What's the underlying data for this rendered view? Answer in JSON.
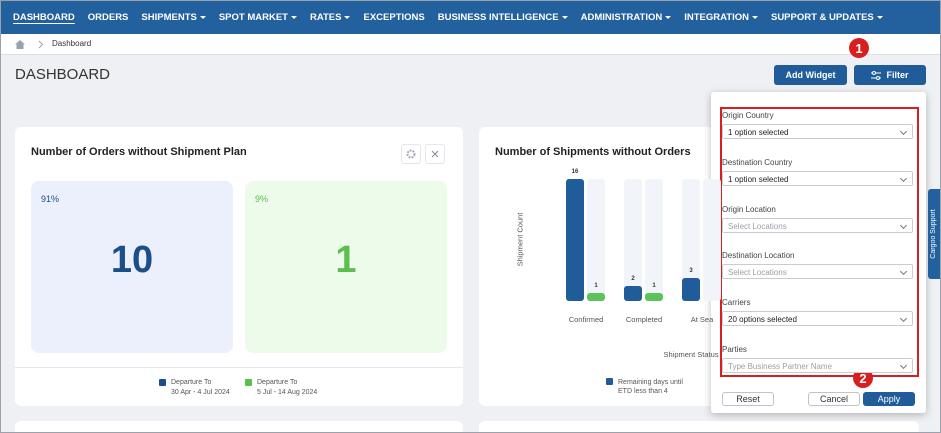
{
  "nav": {
    "items": [
      {
        "label": "DASHBOARD",
        "dropdown": false,
        "active": true
      },
      {
        "label": "ORDERS",
        "dropdown": false,
        "active": false
      },
      {
        "label": "SHIPMENTS",
        "dropdown": true,
        "active": false
      },
      {
        "label": "SPOT MARKET",
        "dropdown": true,
        "active": false
      },
      {
        "label": "RATES",
        "dropdown": true,
        "active": false
      },
      {
        "label": "EXCEPTIONS",
        "dropdown": false,
        "active": false
      },
      {
        "label": "BUSINESS INTELLIGENCE",
        "dropdown": true,
        "active": false
      },
      {
        "label": "ADMINISTRATION",
        "dropdown": true,
        "active": false
      },
      {
        "label": "INTEGRATION",
        "dropdown": true,
        "active": false
      },
      {
        "label": "SUPPORT & UPDATES",
        "dropdown": true,
        "active": false
      }
    ]
  },
  "breadcrumb": {
    "current": "Dashboard"
  },
  "header": {
    "title": "DASHBOARD",
    "buttons": [
      "Add Widget",
      "Filter"
    ]
  },
  "callouts": [
    "1",
    "2"
  ],
  "widgets": [
    {
      "title": "Number of Orders without Shipment Plan",
      "tiles": [
        {
          "percent": "91%",
          "value": 10,
          "color": "#1a4f8a",
          "background": "#eceffc",
          "legend_title": "Departure To",
          "legend_range": "30 Apr - 4 Jul 2024"
        },
        {
          "percent": "9%",
          "value": 1,
          "color": "#5cbf4d",
          "background": "#edfbea",
          "legend_title": "Departure To",
          "legend_range": "5 Jul - 14 Aug 2024"
        }
      ]
    },
    {
      "title": "Number of Shipments without Orders",
      "chart": {
        "type": "bar",
        "y_label": "Shipment Count",
        "x_label": "Shipment Status",
        "categories": [
          "Confirmed",
          "Completed",
          "At Sea"
        ],
        "ylim": [
          0,
          16
        ],
        "series": [
          {
            "name": "Remaining days until ETD less than 4",
            "color": "#1f5c99",
            "values": [
              16,
              2,
              3
            ]
          },
          {
            "color": "#5cc35a",
            "values": [
              1,
              1,
              null
            ]
          }
        ]
      }
    }
  ],
  "filter_panel": {
    "fields": [
      {
        "label": "Origin Country",
        "value": "1 option selected",
        "placeholder": false
      },
      {
        "label": "Destination Country",
        "value": "1 option selected",
        "placeholder": false
      },
      {
        "label": "Origin Location",
        "value": "Select Locations",
        "placeholder": true
      },
      {
        "label": "Destination Location",
        "value": "Select Locations",
        "placeholder": true
      },
      {
        "label": "Carriers",
        "value": "20 options selected",
        "placeholder": false
      },
      {
        "label": "Parties",
        "value": "Type Business Partner Name",
        "placeholder": true
      }
    ],
    "buttons": {
      "reset": "Reset",
      "cancel": "Cancel",
      "apply": "Apply"
    }
  },
  "side_tab": "Cargoo Support"
}
